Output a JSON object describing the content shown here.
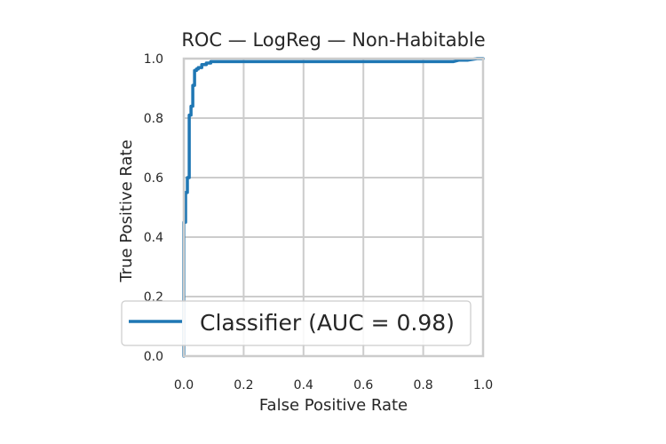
{
  "chart_data": {
    "type": "line",
    "title": "ROC — LogReg — Non-Habitable",
    "xlabel": "False Positive Rate",
    "ylabel": "True Positive Rate",
    "xlim": [
      0,
      1
    ],
    "ylim": [
      0,
      1
    ],
    "xticks": [
      "0.0",
      "0.2",
      "0.4",
      "0.6",
      "0.8",
      "1.0"
    ],
    "yticks": [
      "0.0",
      "0.2",
      "0.4",
      "0.6",
      "0.8",
      "1.0"
    ],
    "grid": true,
    "legend_position": "lower-right",
    "series": [
      {
        "name": "Classifier (AUC = 0.98)",
        "color": "#1f77b4",
        "x": [
          0.0,
          0.0,
          0.006,
          0.006,
          0.012,
          0.012,
          0.018,
          0.018,
          0.024,
          0.024,
          0.03,
          0.03,
          0.036,
          0.036,
          0.042,
          0.042,
          0.048,
          0.048,
          0.06,
          0.06,
          0.075,
          0.075,
          0.09,
          0.09,
          0.2,
          0.3,
          0.5,
          0.7,
          0.9,
          0.92,
          0.95,
          0.98,
          1.0
        ],
        "y": [
          0.0,
          0.45,
          0.45,
          0.55,
          0.55,
          0.6,
          0.6,
          0.81,
          0.81,
          0.84,
          0.84,
          0.91,
          0.91,
          0.96,
          0.96,
          0.965,
          0.965,
          0.97,
          0.97,
          0.98,
          0.98,
          0.985,
          0.985,
          0.99,
          0.99,
          0.99,
          0.99,
          0.99,
          0.99,
          0.995,
          0.995,
          1.0,
          1.0
        ]
      }
    ]
  }
}
